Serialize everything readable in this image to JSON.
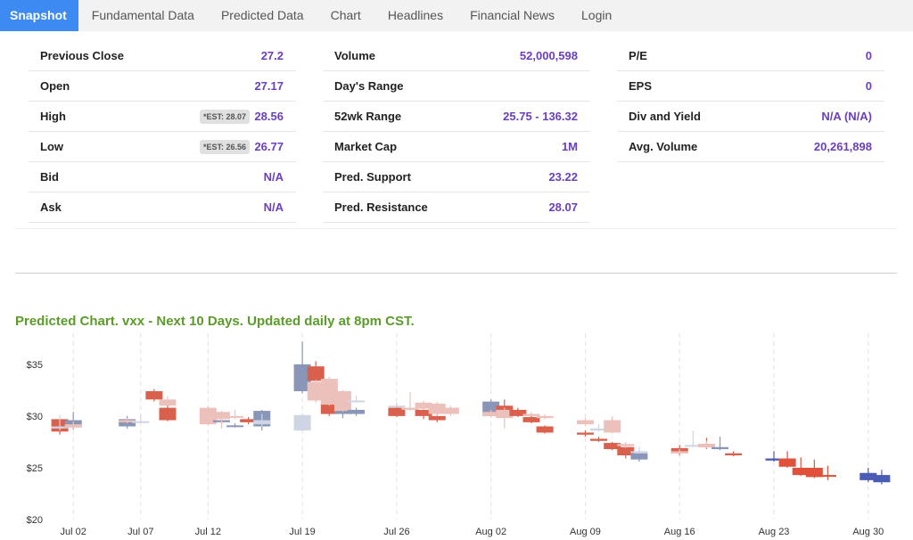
{
  "tabs": [
    "Snapshot",
    "Fundamental Data",
    "Predicted Data",
    "Chart",
    "Headlines",
    "Financial News",
    "Login"
  ],
  "stats": {
    "col1": [
      {
        "label": "Previous Close",
        "value": "27.2"
      },
      {
        "label": "Open",
        "value": "27.17"
      },
      {
        "label": "High",
        "value": "28.56",
        "est": "*EST: 28.07"
      },
      {
        "label": "Low",
        "value": "26.77",
        "est": "*EST: 26.56"
      },
      {
        "label": "Bid",
        "value": "N/A"
      },
      {
        "label": "Ask",
        "value": "N/A"
      }
    ],
    "col2": [
      {
        "label": "Volume",
        "value": "52,000,598"
      },
      {
        "label": "Day's Range",
        "value": ""
      },
      {
        "label": "52wk Range",
        "value": "25.75 - 136.32"
      },
      {
        "label": "Market Cap",
        "value": "1M"
      },
      {
        "label": "Pred. Support",
        "value": "23.22"
      },
      {
        "label": "Pred. Resistance",
        "value": "28.07"
      }
    ],
    "col3": [
      {
        "label": "P/E",
        "value": "0"
      },
      {
        "label": "EPS",
        "value": "0"
      },
      {
        "label": "Div and Yield",
        "value": "N/A (N/A)"
      },
      {
        "label": "Avg. Volume",
        "value": "20,261,898"
      }
    ]
  },
  "chart_title": "Predicted Chart. vxx - Next 10 Days. Updated daily at 8pm CST.",
  "chart_data": {
    "type": "candlestick",
    "ylim": [
      20,
      38
    ],
    "yticks": [
      "$20",
      "$25",
      "$30",
      "$35"
    ],
    "ytick_values": [
      20,
      25,
      30,
      35
    ],
    "xticks": [
      {
        "label": "Jul 02",
        "date": "2021-07-02"
      },
      {
        "label": "Jul 07",
        "date": "2021-07-07"
      },
      {
        "label": "Jul 12",
        "date": "2021-07-12"
      },
      {
        "label": "Jul 19",
        "date": "2021-07-19"
      },
      {
        "label": "Jul 26",
        "date": "2021-07-26"
      },
      {
        "label": "Aug 02",
        "date": "2021-08-02"
      },
      {
        "label": "Aug 09",
        "date": "2021-08-09"
      },
      {
        "label": "Aug 16",
        "date": "2021-08-16"
      },
      {
        "label": "Aug 23",
        "date": "2021-08-23"
      },
      {
        "label": "Aug 30",
        "date": "2021-08-30"
      }
    ],
    "colors": {
      "up_strong": "#8a96b8",
      "down_strong": "#d9604c",
      "up_light": "#cfd5e3",
      "down_light": "#ecc1bc",
      "up_pred": "#4a5cb5",
      "down_pred": "#e0513c"
    },
    "series": [
      {
        "x": "2021-07-01",
        "open": 29.7,
        "close": 28.5,
        "high": 29.8,
        "low": 28.2,
        "group": "actual"
      },
      {
        "x": "2021-07-01",
        "open": 28.8,
        "close": 29.0,
        "high": 30.1,
        "low": 28.6,
        "group": "shadow"
      },
      {
        "x": "2021-07-02",
        "open": 28.9,
        "close": 29.6,
        "high": 30.4,
        "low": 28.7,
        "group": "actual"
      },
      {
        "x": "2021-07-02",
        "open": 29.2,
        "close": 28.9,
        "high": 29.5,
        "low": 28.8,
        "group": "shadow"
      },
      {
        "x": "2021-07-06",
        "open": 29.0,
        "close": 29.7,
        "high": 30.0,
        "low": 28.8,
        "group": "actual"
      },
      {
        "x": "2021-07-06",
        "open": 29.6,
        "close": 29.4,
        "high": 29.8,
        "low": 29.3,
        "group": "shadow"
      },
      {
        "x": "2021-07-07",
        "open": 29.4,
        "close": 29.5,
        "high": 30.2,
        "low": 29.3,
        "group": "shadow"
      },
      {
        "x": "2021-07-08",
        "open": 32.4,
        "close": 31.6,
        "high": 32.6,
        "low": 31.4,
        "group": "actual"
      },
      {
        "x": "2021-07-09",
        "open": 31.6,
        "close": 31.0,
        "high": 31.9,
        "low": 30.9,
        "group": "shadow"
      },
      {
        "x": "2021-07-09",
        "open": 30.8,
        "close": 29.6,
        "high": 31.0,
        "low": 29.5,
        "group": "actual"
      },
      {
        "x": "2021-07-12",
        "open": 30.8,
        "close": 29.2,
        "high": 31.0,
        "low": 29.1,
        "group": "shadow"
      },
      {
        "x": "2021-07-13",
        "open": 29.4,
        "close": 29.6,
        "high": 30.2,
        "low": 29.2,
        "group": "actual"
      },
      {
        "x": "2021-07-13",
        "open": 30.4,
        "close": 29.7,
        "high": 30.5,
        "low": 28.8,
        "group": "shadow"
      },
      {
        "x": "2021-07-14",
        "open": 29.0,
        "close": 29.1,
        "high": 29.3,
        "low": 28.9,
        "group": "actual"
      },
      {
        "x": "2021-07-14",
        "open": 30.0,
        "close": 29.9,
        "high": 30.6,
        "low": 29.7,
        "group": "shadow"
      },
      {
        "x": "2021-07-15",
        "open": 29.7,
        "close": 29.4,
        "high": 29.9,
        "low": 29.2,
        "group": "actual"
      },
      {
        "x": "2021-07-16",
        "open": 29.0,
        "close": 30.5,
        "high": 30.6,
        "low": 28.6,
        "group": "actual"
      },
      {
        "x": "2021-07-16",
        "open": 29.2,
        "close": 29.6,
        "high": 30.2,
        "low": 29.0,
        "group": "shadow"
      },
      {
        "x": "2021-07-19",
        "open": 32.4,
        "close": 35.0,
        "high": 37.2,
        "low": 32.2,
        "group": "actual"
      },
      {
        "x": "2021-07-19",
        "open": 28.6,
        "close": 30.1,
        "high": 30.2,
        "low": 28.5,
        "group": "shadow"
      },
      {
        "x": "2021-07-20",
        "open": 34.8,
        "close": 33.4,
        "high": 35.3,
        "low": 33.3,
        "group": "actual"
      },
      {
        "x": "2021-07-20",
        "open": 33.3,
        "close": 31.5,
        "high": 33.5,
        "low": 31.3,
        "group": "shadow"
      },
      {
        "x": "2021-07-21",
        "open": 31.2,
        "close": 30.2,
        "high": 31.4,
        "low": 30.0,
        "group": "actual"
      },
      {
        "x": "2021-07-21",
        "open": 33.6,
        "close": 31.1,
        "high": 33.8,
        "low": 31.0,
        "group": "shadow"
      },
      {
        "x": "2021-07-22",
        "open": 30.2,
        "close": 30.6,
        "high": 30.9,
        "low": 29.8,
        "group": "actual"
      },
      {
        "x": "2021-07-22",
        "open": 32.4,
        "close": 30.5,
        "high": 32.5,
        "low": 30.4,
        "group": "shadow"
      },
      {
        "x": "2021-07-23",
        "open": 30.2,
        "close": 30.6,
        "high": 30.8,
        "low": 30.0,
        "group": "actual"
      },
      {
        "x": "2021-07-23",
        "open": 31.4,
        "close": 31.5,
        "high": 32.0,
        "low": 31.3,
        "group": "shadow"
      },
      {
        "x": "2021-07-26",
        "open": 30.8,
        "close": 30.0,
        "high": 31.2,
        "low": 29.9,
        "group": "actual"
      },
      {
        "x": "2021-07-26",
        "open": 31.0,
        "close": 31.0,
        "high": 31.3,
        "low": 30.9,
        "group": "shadow"
      },
      {
        "x": "2021-07-27",
        "open": 30.8,
        "close": 30.6,
        "high": 32.3,
        "low": 30.5,
        "group": "shadow"
      },
      {
        "x": "2021-07-28",
        "open": 30.6,
        "close": 30.0,
        "high": 30.9,
        "low": 29.7,
        "group": "actual"
      },
      {
        "x": "2021-07-28",
        "open": 31.3,
        "close": 30.7,
        "high": 31.5,
        "low": 30.6,
        "group": "shadow"
      },
      {
        "x": "2021-07-29",
        "open": 30.0,
        "close": 29.6,
        "high": 30.3,
        "low": 29.4,
        "group": "actual"
      },
      {
        "x": "2021-07-29",
        "open": 31.2,
        "close": 30.2,
        "high": 31.4,
        "low": 30.0,
        "group": "shadow"
      },
      {
        "x": "2021-07-30",
        "open": 30.8,
        "close": 30.2,
        "high": 31.0,
        "low": 30.0,
        "group": "shadow"
      },
      {
        "x": "2021-08-02",
        "open": 30.0,
        "close": 31.4,
        "high": 31.6,
        "low": 29.9,
        "group": "actual"
      },
      {
        "x": "2021-08-02",
        "open": 30.4,
        "close": 30.0,
        "high": 30.6,
        "low": 29.9,
        "group": "shadow"
      },
      {
        "x": "2021-08-03",
        "open": 31.0,
        "close": 30.1,
        "high": 31.6,
        "low": 29.9,
        "group": "actual"
      },
      {
        "x": "2021-08-03",
        "open": 30.6,
        "close": 29.8,
        "high": 30.8,
        "low": 28.8,
        "group": "shadow"
      },
      {
        "x": "2021-08-04",
        "open": 30.6,
        "close": 30.0,
        "high": 30.8,
        "low": 29.9,
        "group": "actual"
      },
      {
        "x": "2021-08-05",
        "open": 30.2,
        "close": 30.0,
        "high": 30.4,
        "low": 29.9,
        "group": "shadow"
      },
      {
        "x": "2021-08-05",
        "open": 29.9,
        "close": 29.4,
        "high": 30.0,
        "low": 29.3,
        "group": "actual"
      },
      {
        "x": "2021-08-06",
        "open": 29.0,
        "close": 28.4,
        "high": 29.1,
        "low": 28.3,
        "group": "actual"
      },
      {
        "x": "2021-08-06",
        "open": 30.0,
        "close": 29.8,
        "high": 30.2,
        "low": 29.7,
        "group": "shadow"
      },
      {
        "x": "2021-08-09",
        "open": 28.4,
        "close": 28.2,
        "high": 28.6,
        "low": 28.0,
        "group": "actual"
      },
      {
        "x": "2021-08-09",
        "open": 29.6,
        "close": 29.2,
        "high": 29.8,
        "low": 29.0,
        "group": "shadow"
      },
      {
        "x": "2021-08-10",
        "open": 27.8,
        "close": 27.6,
        "high": 28.0,
        "low": 27.5,
        "group": "actual"
      },
      {
        "x": "2021-08-10",
        "open": 28.6,
        "close": 28.8,
        "high": 29.2,
        "low": 28.5,
        "group": "shadow"
      },
      {
        "x": "2021-08-11",
        "open": 27.4,
        "close": 26.8,
        "high": 27.5,
        "low": 26.7,
        "group": "actual"
      },
      {
        "x": "2021-08-11",
        "open": 29.6,
        "close": 28.4,
        "high": 30.0,
        "low": 28.3,
        "group": "shadow"
      },
      {
        "x": "2021-08-12",
        "open": 27.0,
        "close": 26.2,
        "high": 27.2,
        "low": 25.9,
        "group": "actual"
      },
      {
        "x": "2021-08-12",
        "open": 27.3,
        "close": 27.1,
        "high": 27.5,
        "low": 26.9,
        "group": "shadow"
      },
      {
        "x": "2021-08-13",
        "open": 25.8,
        "close": 26.4,
        "high": 26.6,
        "low": 25.6,
        "group": "actual"
      },
      {
        "x": "2021-08-13",
        "open": 26.5,
        "close": 26.6,
        "high": 27.0,
        "low": 26.4,
        "group": "shadow"
      },
      {
        "x": "2021-08-16",
        "open": 26.9,
        "close": 26.4,
        "high": 27.2,
        "low": 26.2,
        "group": "actual"
      },
      {
        "x": "2021-08-16",
        "open": 26.6,
        "close": 26.4,
        "high": 26.8,
        "low": 26.3,
        "group": "shadow"
      },
      {
        "x": "2021-08-17",
        "open": 27.1,
        "close": 27.2,
        "high": 28.6,
        "low": 27.0,
        "group": "shadow"
      },
      {
        "x": "2021-08-18",
        "open": 27.3,
        "close": 27.0,
        "high": 27.9,
        "low": 26.8,
        "group": "actual"
      },
      {
        "x": "2021-08-18",
        "open": 27.3,
        "close": 27.0,
        "high": 27.6,
        "low": 26.9,
        "group": "shadow"
      },
      {
        "x": "2021-08-19",
        "open": 26.8,
        "close": 27.0,
        "high": 28.0,
        "low": 26.7,
        "group": "actual"
      },
      {
        "x": "2021-08-20",
        "open": 26.4,
        "close": 26.2,
        "high": 26.6,
        "low": 26.1,
        "group": "actual"
      },
      {
        "x": "2021-08-23",
        "open": 25.7,
        "close": 25.9,
        "high": 26.6,
        "low": 25.6,
        "group": "predicted"
      },
      {
        "x": "2021-08-24",
        "open": 25.9,
        "close": 25.1,
        "high": 26.6,
        "low": 25.0,
        "group": "predicted"
      },
      {
        "x": "2021-08-25",
        "open": 25.0,
        "close": 24.3,
        "high": 26.0,
        "low": 24.2,
        "group": "predicted"
      },
      {
        "x": "2021-08-26",
        "open": 25.0,
        "close": 24.1,
        "high": 25.8,
        "low": 24.0,
        "group": "predicted"
      },
      {
        "x": "2021-08-27",
        "open": 24.3,
        "close": 24.2,
        "high": 25.2,
        "low": 23.8,
        "group": "predicted"
      },
      {
        "x": "2021-08-30",
        "open": 23.8,
        "close": 24.5,
        "high": 25.0,
        "low": 23.6,
        "group": "predicted"
      },
      {
        "x": "2021-08-31",
        "open": 23.6,
        "close": 24.3,
        "high": 24.8,
        "low": 23.4,
        "group": "predicted"
      }
    ]
  }
}
